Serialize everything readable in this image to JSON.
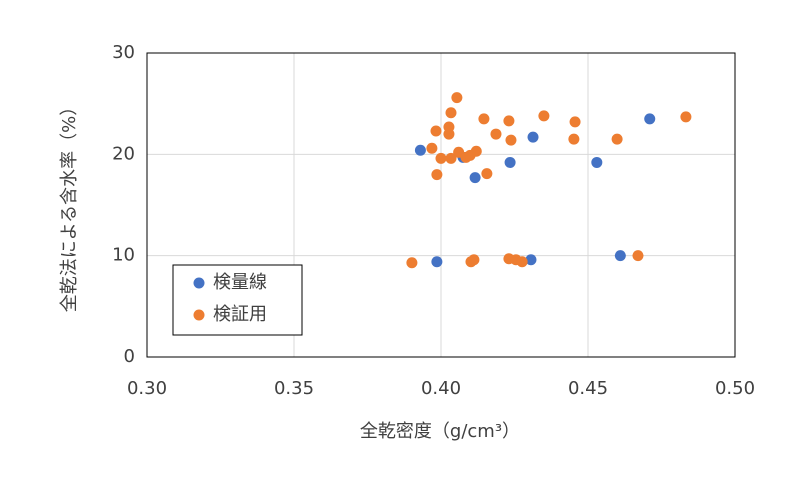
{
  "chart_data": {
    "type": "scatter",
    "x_label": "全乾密度（g/cm³）",
    "y_label": "全乾法による含水率（%）",
    "xlim": [
      0.3,
      0.5
    ],
    "xticks": [
      {
        "value": 0.3,
        "label": "0.30"
      },
      {
        "value": 0.35,
        "label": "0.35"
      },
      {
        "value": 0.4,
        "label": "0.40"
      },
      {
        "value": 0.45,
        "label": "0.45"
      },
      {
        "value": 0.5,
        "label": "0.50"
      }
    ],
    "ylim": [
      0,
      30
    ],
    "yticks": [
      0,
      10,
      20,
      30
    ],
    "grid": true,
    "legend": "lower-left",
    "series": [
      {
        "name": "検量線",
        "color": "#4472c4",
        "x": [
          0.393,
          0.4075,
          0.4116,
          0.4235,
          0.4313,
          0.453,
          0.471,
          0.3986,
          0.4306,
          0.461
        ],
        "values": [
          20.4,
          19.7,
          17.7,
          19.2,
          21.7,
          19.2,
          23.5,
          9.4,
          9.6,
          10.0
        ]
      },
      {
        "name": "検証用",
        "color": "#ed7d31",
        "x": [
          0.4054,
          0.4034,
          0.4027,
          0.4027,
          0.3983,
          0.3969,
          0.4,
          0.4034,
          0.406,
          0.4085,
          0.4099,
          0.412,
          0.3986,
          0.4156,
          0.4146,
          0.4187,
          0.4231,
          0.4238,
          0.435,
          0.4456,
          0.4452,
          0.4599,
          0.4833,
          0.3901,
          0.4102,
          0.4112,
          0.4231,
          0.4255,
          0.4276,
          0.467
        ],
        "values": [
          25.6,
          24.1,
          22.7,
          22.0,
          22.3,
          20.6,
          19.6,
          19.6,
          20.2,
          19.7,
          19.9,
          20.3,
          18.0,
          18.1,
          23.5,
          22.0,
          23.3,
          21.4,
          23.8,
          23.2,
          21.5,
          21.5,
          23.7,
          9.3,
          9.4,
          9.6,
          9.7,
          9.6,
          9.4,
          10.0
        ]
      }
    ]
  }
}
